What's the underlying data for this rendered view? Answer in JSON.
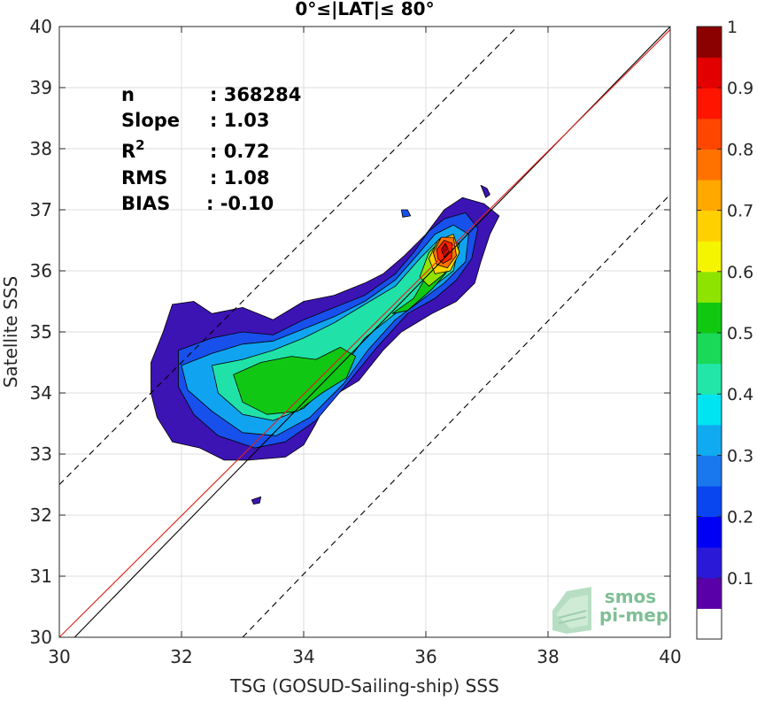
{
  "chart_data": {
    "type": "heatmap",
    "subtype": "filled-contour density scatter",
    "title": "0°≤|LAT|≤ 80°",
    "xlabel": "TSG (GOSUD-Sailing-ship) SSS",
    "ylabel": "Satellite SSS",
    "xlim": [
      30,
      40
    ],
    "ylim": [
      30,
      40
    ],
    "xticks": [
      30,
      32,
      34,
      36,
      38,
      40
    ],
    "yticks": [
      30,
      31,
      32,
      33,
      34,
      35,
      36,
      37,
      38,
      39,
      40
    ],
    "grid": true,
    "stats": [
      {
        "label": "n",
        "value": ": 368284"
      },
      {
        "label": "Slope",
        "value": ": 1.03"
      },
      {
        "label": "R",
        "sup": "2",
        "value": ": 0.72"
      },
      {
        "label": "RMS",
        "value": ": 1.08"
      },
      {
        "label": "BIAS",
        "value": ": -0.10"
      }
    ],
    "lines": [
      {
        "name": "identity",
        "color": "#000000",
        "dash": "",
        "points": [
          [
            30.25,
            30.0
          ],
          [
            40.0,
            40.0
          ]
        ]
      },
      {
        "name": "regression",
        "color": "#e0201a",
        "dash": "",
        "points": [
          [
            30.0,
            30.0
          ],
          [
            40.0,
            39.95
          ]
        ]
      },
      {
        "name": "upper-bound",
        "color": "#000000",
        "dash": "dashed",
        "points": [
          [
            30.0,
            32.5
          ],
          [
            37.5,
            40.0
          ]
        ]
      },
      {
        "name": "lower-bound",
        "color": "#000000",
        "dash": "dashed",
        "points": [
          [
            33.0,
            30.0
          ],
          [
            40.0,
            37.25
          ]
        ]
      }
    ],
    "density_peak": {
      "x": 36.3,
      "y": 36.35,
      "value": 1.0
    },
    "secondary_peak": {
      "x": 34.0,
      "y": 34.1,
      "value": 0.5
    },
    "colorbar": {
      "ticks": [
        0.1,
        0.2,
        0.3,
        0.4,
        0.5,
        0.6,
        0.7,
        0.8,
        0.9,
        1
      ],
      "tick_labels": [
        "0.1",
        "0.2",
        "0.3",
        "0.4",
        "0.5",
        "0.6",
        "0.7",
        "0.8",
        "0.9",
        "1"
      ],
      "colors": [
        "#ffffff",
        "#5a00a8",
        "#2a1ad8",
        "#0000f5",
        "#0a46f0",
        "#1a78ee",
        "#10aaf0",
        "#00e4f2",
        "#22e6a8",
        "#1ad858",
        "#10c810",
        "#8ee400",
        "#f5f500",
        "#ffd000",
        "#ffa800",
        "#ff7200",
        "#ff4600",
        "#ff1400",
        "#e20000",
        "#8b0000"
      ]
    },
    "contours": [
      {
        "level": 0.05,
        "color": "#3c14b4",
        "rings": [
          [
            [
              31.85,
              35.45
            ],
            [
              32.2,
              35.5
            ],
            [
              32.5,
              35.3
            ],
            [
              33.0,
              35.4
            ],
            [
              33.5,
              35.2
            ],
            [
              34.0,
              35.5
            ],
            [
              34.5,
              35.6
            ],
            [
              35.0,
              35.8
            ],
            [
              35.3,
              35.95
            ],
            [
              35.65,
              36.25
            ],
            [
              36.0,
              36.6
            ],
            [
              36.3,
              37.0
            ],
            [
              36.6,
              37.2
            ],
            [
              36.95,
              37.1
            ],
            [
              37.2,
              36.9
            ],
            [
              37.05,
              36.6
            ],
            [
              36.9,
              36.15
            ],
            [
              36.8,
              35.8
            ],
            [
              36.5,
              35.5
            ],
            [
              36.1,
              35.3
            ],
            [
              35.6,
              35.0
            ],
            [
              35.3,
              34.7
            ],
            [
              34.9,
              34.2
            ],
            [
              34.4,
              33.9
            ],
            [
              34.2,
              33.5
            ],
            [
              34.0,
              33.15
            ],
            [
              33.7,
              32.95
            ],
            [
              33.1,
              32.9
            ],
            [
              32.7,
              32.9
            ],
            [
              32.3,
              33.1
            ],
            [
              31.85,
              33.2
            ],
            [
              31.6,
              33.6
            ],
            [
              31.5,
              34.0
            ],
            [
              31.5,
              34.5
            ],
            [
              31.7,
              35.0
            ]
          ],
          [
            [
              33.15,
              32.25
            ],
            [
              33.3,
              32.3
            ],
            [
              33.28,
              32.2
            ],
            [
              33.18,
              32.18
            ]
          ],
          [
            [
              36.9,
              37.4
            ],
            [
              37.0,
              37.35
            ],
            [
              37.05,
              37.25
            ],
            [
              36.98,
              37.2
            ]
          ]
        ]
      },
      {
        "level": 0.2,
        "color": "#1850ec",
        "rings": [
          [
            [
              31.95,
              34.7
            ],
            [
              32.5,
              34.9
            ],
            [
              33.0,
              35.0
            ],
            [
              33.5,
              34.95
            ],
            [
              34.0,
              35.2
            ],
            [
              34.5,
              35.4
            ],
            [
              35.0,
              35.6
            ],
            [
              35.5,
              35.95
            ],
            [
              35.8,
              36.3
            ],
            [
              36.05,
              36.65
            ],
            [
              36.3,
              36.85
            ],
            [
              36.65,
              36.95
            ],
            [
              36.85,
              36.7
            ],
            [
              36.75,
              36.2
            ],
            [
              36.5,
              35.85
            ],
            [
              36.15,
              35.55
            ],
            [
              35.7,
              35.3
            ],
            [
              35.2,
              34.75
            ],
            [
              34.75,
              34.2
            ],
            [
              34.2,
              33.55
            ],
            [
              33.7,
              33.2
            ],
            [
              33.2,
              33.1
            ],
            [
              32.6,
              33.3
            ],
            [
              32.2,
              33.65
            ],
            [
              31.95,
              34.1
            ]
          ],
          [
            [
              35.6,
              37.0
            ],
            [
              35.7,
              37.0
            ],
            [
              35.75,
              36.9
            ],
            [
              35.62,
              36.88
            ]
          ]
        ]
      },
      {
        "level": 0.3,
        "color": "#10a4f0",
        "rings": [
          [
            [
              32.0,
              34.45
            ],
            [
              32.5,
              34.65
            ],
            [
              33.0,
              34.8
            ],
            [
              33.5,
              34.85
            ],
            [
              34.0,
              35.05
            ],
            [
              34.5,
              35.25
            ],
            [
              35.0,
              35.5
            ],
            [
              35.5,
              35.85
            ],
            [
              35.85,
              36.25
            ],
            [
              36.15,
              36.6
            ],
            [
              36.45,
              36.75
            ],
            [
              36.7,
              36.6
            ],
            [
              36.65,
              36.15
            ],
            [
              36.3,
              35.8
            ],
            [
              35.9,
              35.5
            ],
            [
              35.5,
              35.2
            ],
            [
              35.05,
              34.7
            ],
            [
              34.65,
              34.15
            ],
            [
              34.1,
              33.6
            ],
            [
              33.55,
              33.3
            ],
            [
              33.0,
              33.35
            ],
            [
              32.5,
              33.7
            ],
            [
              32.1,
              34.05
            ]
          ]
        ]
      },
      {
        "level": 0.4,
        "color": "#20e2a8",
        "rings": [
          [
            [
              32.5,
              34.45
            ],
            [
              33.0,
              34.55
            ],
            [
              33.5,
              34.7
            ],
            [
              34.0,
              34.9
            ],
            [
              34.5,
              35.15
            ],
            [
              35.0,
              35.45
            ],
            [
              35.5,
              35.75
            ],
            [
              35.9,
              36.2
            ],
            [
              36.25,
              36.55
            ],
            [
              36.55,
              36.45
            ],
            [
              36.45,
              36.0
            ],
            [
              36.0,
              35.65
            ],
            [
              35.5,
              35.3
            ],
            [
              35.0,
              34.9
            ],
            [
              34.55,
              34.3
            ],
            [
              34.0,
              33.75
            ],
            [
              33.5,
              33.55
            ],
            [
              33.0,
              33.65
            ],
            [
              32.6,
              34.0
            ]
          ]
        ]
      },
      {
        "level": 0.5,
        "color": "#10c814",
        "rings": [
          [
            [
              32.85,
              34.3
            ],
            [
              33.3,
              34.5
            ],
            [
              33.8,
              34.6
            ],
            [
              34.2,
              34.55
            ],
            [
              34.6,
              34.75
            ],
            [
              34.85,
              34.6
            ],
            [
              34.7,
              34.25
            ],
            [
              34.3,
              34.0
            ],
            [
              33.9,
              33.7
            ],
            [
              33.4,
              33.65
            ],
            [
              33.0,
              33.85
            ]
          ],
          [
            [
              35.45,
              35.3
            ],
            [
              35.8,
              35.55
            ],
            [
              36.0,
              35.9
            ],
            [
              36.25,
              36.2
            ],
            [
              36.4,
              36.05
            ],
            [
              36.1,
              35.7
            ],
            [
              35.7,
              35.35
            ]
          ]
        ]
      },
      {
        "level": 0.6,
        "color": "#92e400",
        "rings": [
          [
            [
              35.9,
              35.9
            ],
            [
              36.05,
              36.3
            ],
            [
              36.25,
              36.5
            ],
            [
              36.45,
              36.3
            ],
            [
              36.3,
              35.95
            ],
            [
              36.05,
              35.75
            ]
          ]
        ]
      },
      {
        "level": 0.7,
        "color": "#ffd200",
        "rings": [
          [
            [
              36.05,
              36.2
            ],
            [
              36.2,
              36.5
            ],
            [
              36.45,
              36.6
            ],
            [
              36.55,
              36.3
            ],
            [
              36.4,
              36.0
            ],
            [
              36.15,
              35.95
            ]
          ]
        ]
      },
      {
        "level": 0.8,
        "color": "#ff7200",
        "rings": [
          [
            [
              36.12,
              36.3
            ],
            [
              36.25,
              36.55
            ],
            [
              36.45,
              36.55
            ],
            [
              36.5,
              36.25
            ],
            [
              36.35,
              36.05
            ],
            [
              36.18,
              36.1
            ]
          ]
        ]
      },
      {
        "level": 0.9,
        "color": "#ff2200",
        "rings": [
          [
            [
              36.18,
              36.35
            ],
            [
              36.3,
              36.5
            ],
            [
              36.43,
              36.45
            ],
            [
              36.42,
              36.2
            ],
            [
              36.28,
              36.12
            ],
            [
              36.2,
              36.2
            ]
          ]
        ]
      },
      {
        "level": 1.0,
        "color": "#a80000",
        "rings": [
          [
            [
              36.25,
              36.35
            ],
            [
              36.32,
              36.45
            ],
            [
              36.38,
              36.32
            ],
            [
              36.3,
              36.22
            ]
          ]
        ]
      }
    ]
  },
  "watermark": {
    "line1": "smos",
    "line2": "pi-mep",
    "color": "#7fbf95"
  }
}
